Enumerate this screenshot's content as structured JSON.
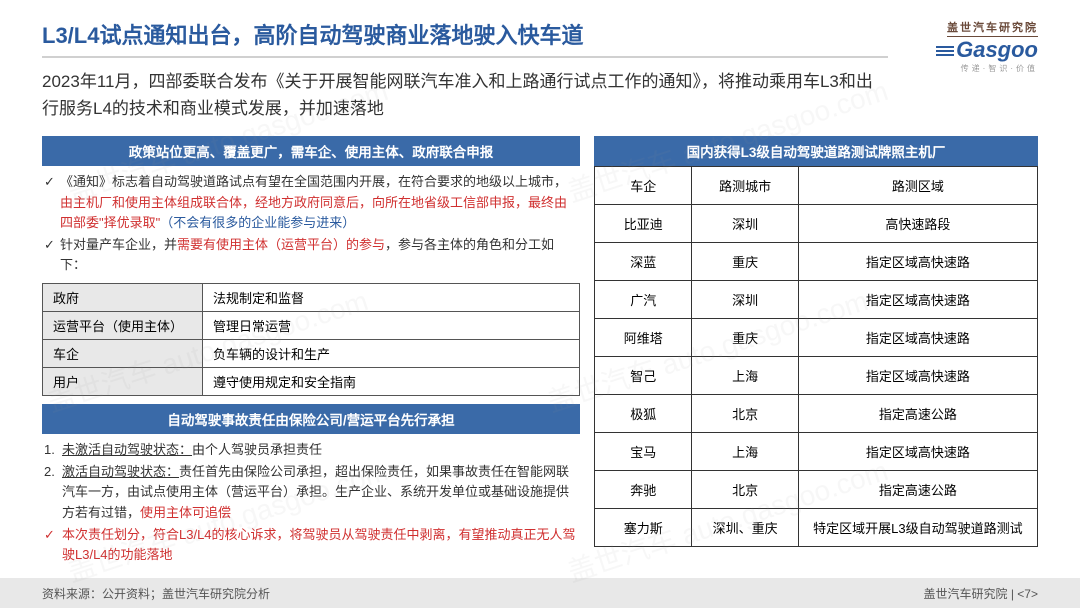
{
  "header": {
    "title": "L3/L4试点通知出台，高阶自动驾驶商业落地驶入快车道",
    "subtitle": "2023年11月，四部委联合发布《关于开展智能网联汽车准入和上路通行试点工作的通知》，将推动乘用车L3和出行服务L4的技术和商业模式发展，并加速落地",
    "logo_cn": "盖世汽车研究院",
    "logo_en": "Gasgoo",
    "logo_sub": "传递·智识·价值"
  },
  "left": {
    "band1": "政策站位更高、覆盖更广，需车企、使用主体、政府联合申报",
    "bullet1_pre": "《通知》标志着自动驾驶道路试点有望在全国范围内开展，在符合要求的地级以上城市，",
    "bullet1_red": "由主机厂和使用主体组成联合体，经地方政府同意后，向所在地省级工信部申报，最终由四部委\"择优录取\"",
    "bullet1_blue": "（不会有很多的企业能参与进来）",
    "bullet2_pre": "针对量产车企业，并",
    "bullet2_red": "需要有使用主体（运营平台）的参与",
    "bullet2_post": "，参与各主体的角色和分工如下：",
    "roles": [
      {
        "role": "政府",
        "duty": "法规制定和监督"
      },
      {
        "role": "运营平台（使用主体）",
        "duty": "管理日常运营"
      },
      {
        "role": "车企",
        "duty": "负车辆的设计和生产"
      },
      {
        "role": "用户",
        "duty": "遵守使用规定和安全指南"
      }
    ],
    "band2": "自动驾驶事故责任由保险公司/营运平台先行承担",
    "ol1_label": "未激活自动驾驶状态：",
    "ol1_text": "由个人驾驶员承担责任",
    "ol2_label": "激活自动驾驶状态：",
    "ol2_text": "责任首先由保险公司承担，超出保险责任，如果事故责任在智能网联汽车一方，由试点使用主体（营运平台）承担。生产企业、系统开发单位或基础设施提供方若有过错，",
    "ol2_red": "使用主体可追偿",
    "ol_check": "本次责任划分，符合L3/L4的核心诉求，将驾驶员从驾驶责任中剥离，有望推动真正无人驾驶L3/L4的功能落地"
  },
  "right": {
    "band": "国内获得L3级自动驾驶道路测试牌照主机厂",
    "columns": [
      "车企",
      "路测城市",
      "路测区域"
    ],
    "rows": [
      [
        "比亚迪",
        "深圳",
        "高快速路段"
      ],
      [
        "深蓝",
        "重庆",
        "指定区域高快速路"
      ],
      [
        "广汽",
        "深圳",
        "指定区域高快速路"
      ],
      [
        "阿维塔",
        "重庆",
        "指定区域高快速路"
      ],
      [
        "智己",
        "上海",
        "指定区域高快速路"
      ],
      [
        "极狐",
        "北京",
        "指定高速公路"
      ],
      [
        "宝马",
        "上海",
        "指定区域高快速路"
      ],
      [
        "奔驰",
        "北京",
        "指定高速公路"
      ],
      [
        "塞力斯",
        "深圳、重庆",
        "特定区域开展L3级自动驾驶道路测试"
      ]
    ],
    "col_widths": [
      "22%",
      "24%",
      "54%"
    ]
  },
  "footer": {
    "left": "资料来源：公开资料；盖世汽车研究院分析",
    "right_text": "盖世汽车研究院",
    "page": "7"
  },
  "colors": {
    "title": "#2a5a9e",
    "band_bg": "#3a6aa8",
    "red": "#d03030",
    "footer_bg": "#e8e8e8",
    "border": "#333333"
  },
  "watermark": "盖世汽车 auto.gasgoo.com"
}
